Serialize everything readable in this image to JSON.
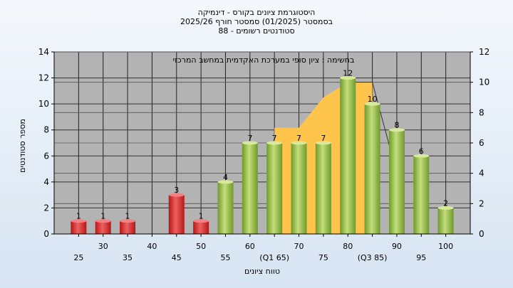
{
  "title_lines": [
    "היסטוגרמת ציונים בקורס - דינמיקה",
    "בסמסטר  (01/2025)  סמסטר חורף 2025/26",
    "סטודנטים רשומים - 88"
  ],
  "chart_data": {
    "type": "bar",
    "subtitle": "בחשימה : ציון סופי במערכת האקדמית במחשב המרכזי",
    "xlabel": "טווח ציונים",
    "ylabel": "מספר סטודנטים",
    "x_ticks": [
      "25",
      "30",
      "35",
      "40",
      "45",
      "50",
      "55",
      "60",
      "(Q1 65)",
      "70",
      "75",
      "80",
      "(Q3 85)",
      "90",
      "95",
      "100"
    ],
    "categories": [
      25,
      30,
      35,
      40,
      45,
      50,
      55,
      60,
      65,
      70,
      75,
      80,
      85,
      90,
      95,
      100
    ],
    "values": [
      1,
      1,
      1,
      0,
      3,
      1,
      4,
      7,
      7,
      7,
      7,
      12,
      10,
      8,
      6,
      2
    ],
    "fail_color": "#e03030",
    "pass_color": "#8dbb3c",
    "band_color": "#ffc44c",
    "plot_bg": "#b3b3b3",
    "ylim_left": [
      0,
      14
    ],
    "yticks_left": [
      0,
      2,
      4,
      6,
      8,
      10,
      12,
      14
    ],
    "ylim_right": [
      0,
      12
    ],
    "yticks_right": [
      0,
      2,
      4,
      6,
      8,
      10,
      12
    ],
    "band_x": [
      65,
      70,
      75,
      80,
      85
    ],
    "band_y": [
      7,
      7,
      9,
      10,
      10
    ],
    "line_x": [
      80,
      85,
      90
    ],
    "line_y": [
      10,
      10,
      4
    ],
    "grid": true
  }
}
